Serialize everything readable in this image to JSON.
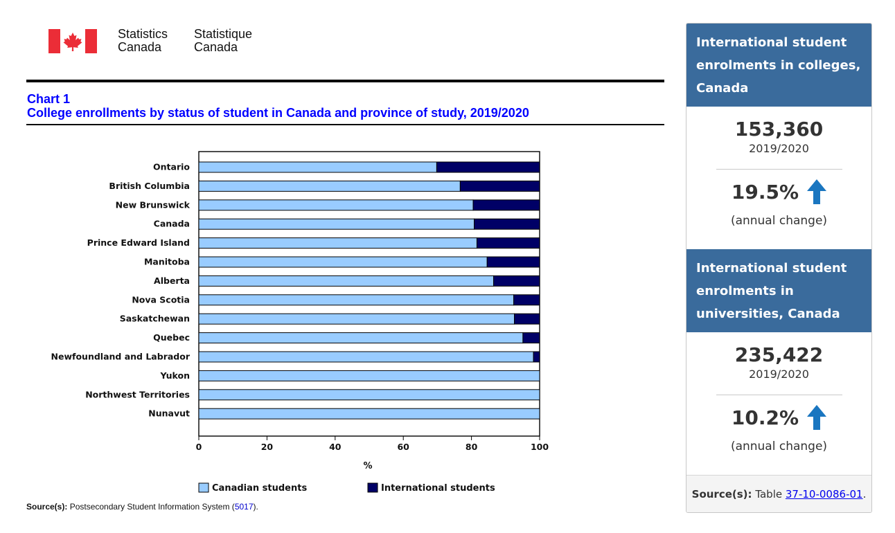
{
  "header": {
    "brand_en": "Statistics\nCanada",
    "brand_fr": "Statistique\nCanada"
  },
  "chart": {
    "number": "Chart 1",
    "title": "College enrollments by status of student in Canada and province of study, 2019/2020",
    "source_label": "Source(s):",
    "source_text": "Postsecondary Student Information System (",
    "source_link": "5017",
    "source_end": ")."
  },
  "chart_data": {
    "type": "bar",
    "orientation": "horizontal",
    "stacked": true,
    "categories": [
      "Ontario",
      "British Columbia",
      "New Brunswick",
      "Canada",
      "Prince Edward Island",
      "Manitoba",
      "Alberta",
      "Nova Scotia",
      "Saskatchewan",
      "Quebec",
      "Newfoundland and Labrador",
      "Yukon",
      "Northwest Territories",
      "Nunavut"
    ],
    "bold_categories": [
      "Canada"
    ],
    "series": [
      {
        "name": "Canadian students",
        "color": "#99ccff",
        "values": [
          69.8,
          76.7,
          80.5,
          80.8,
          81.6,
          84.6,
          86.5,
          92.4,
          92.6,
          95.1,
          98.2,
          100,
          100,
          100
        ]
      },
      {
        "name": "International students",
        "color": "#000066",
        "values": [
          30.2,
          23.3,
          19.5,
          19.2,
          18.4,
          15.4,
          13.5,
          7.6,
          7.4,
          4.9,
          1.8,
          0,
          0,
          0
        ]
      }
    ],
    "xlim": [
      0,
      100
    ],
    "xticks": [
      "0",
      "20",
      "40",
      "60",
      "80",
      "100"
    ],
    "xlabel": "%",
    "legend_position": "bottom"
  },
  "panel": {
    "cards": [
      {
        "heading": "International student enrolments in colleges, Canada",
        "value": "153,360",
        "year": "2019/2020",
        "change": "19.5%",
        "change_note": "(annual change)",
        "arrow": "up-arrow",
        "arrow_color": "#1a76c0"
      },
      {
        "heading": "International student enrolments in universities, Canada",
        "value": "235,422",
        "year": "2019/2020",
        "change": "10.2%",
        "change_note": "(annual change)",
        "arrow": "up-arrow",
        "arrow_color": "#1a76c0"
      }
    ],
    "source_label": "Source(s):",
    "source_text": "Table",
    "source_link": "37-10-0086-01",
    "source_end": "."
  }
}
